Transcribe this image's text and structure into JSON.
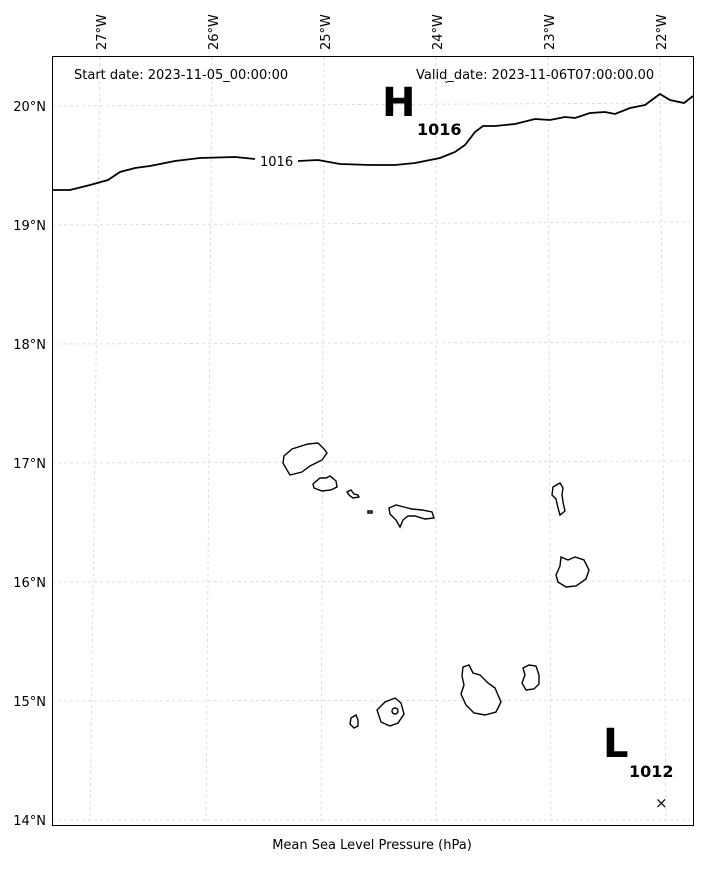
{
  "start_date": "Start date: 2023-11-05_00:00:00",
  "valid_date": "Valid_date: 2023-11-06T07:00:00.00",
  "caption": "Mean Sea Level Pressure (hPa)",
  "lon_ticks": [
    "27°W",
    "26°W",
    "25°W",
    "24°W",
    "23°W",
    "22°W"
  ],
  "lat_ticks": [
    "20°N",
    "19°N",
    "18°N",
    "17°N",
    "16°N",
    "15°N",
    "14°N"
  ],
  "isobar_label": "1016",
  "high": {
    "letter": "H",
    "value": "1016"
  },
  "low": {
    "letter": "L",
    "value": "1012",
    "marker": "×"
  }
}
